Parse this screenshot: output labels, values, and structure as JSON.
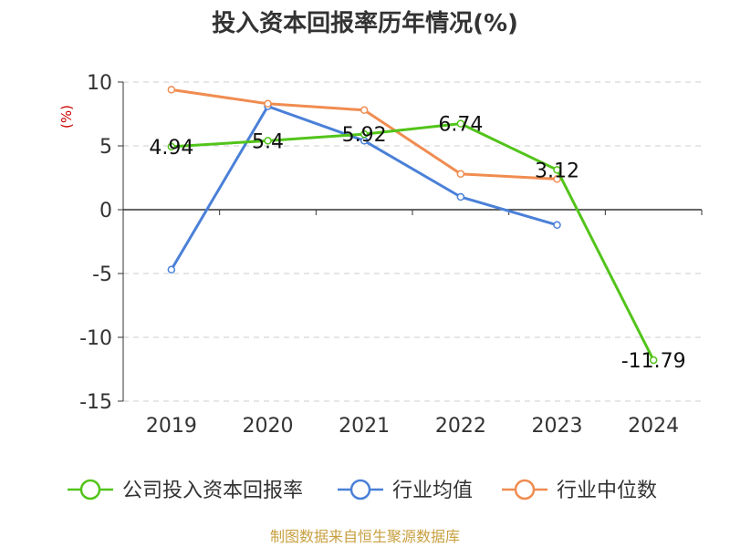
{
  "chart_data": {
    "type": "line",
    "title": "投入资本回报率历年情况(%)",
    "ylabel": "(%)",
    "categories": [
      "2019",
      "2020",
      "2021",
      "2022",
      "2023",
      "2024"
    ],
    "ylim": [
      -15,
      10
    ],
    "yticks": [
      10,
      5,
      0,
      -5,
      -10,
      -15
    ],
    "grid": true,
    "legend_position": "bottom",
    "series": [
      {
        "name": "公司投入资本回报率",
        "color": "#52c41a",
        "values": [
          4.94,
          5.4,
          5.92,
          6.74,
          3.12,
          -11.79
        ],
        "labels": [
          "4.94",
          "5.4",
          "5.92",
          "6.74",
          "3.12",
          "-11.79"
        ]
      },
      {
        "name": "行业均值",
        "color": "#4a80d8",
        "values": [
          -4.7,
          8.1,
          5.4,
          1.0,
          -1.2,
          null
        ]
      },
      {
        "name": "行业中位数",
        "color": "#f08c50",
        "values": [
          9.4,
          8.3,
          7.8,
          2.8,
          2.4,
          null
        ]
      }
    ]
  },
  "footer": "制图数据来自恒生聚源数据库"
}
